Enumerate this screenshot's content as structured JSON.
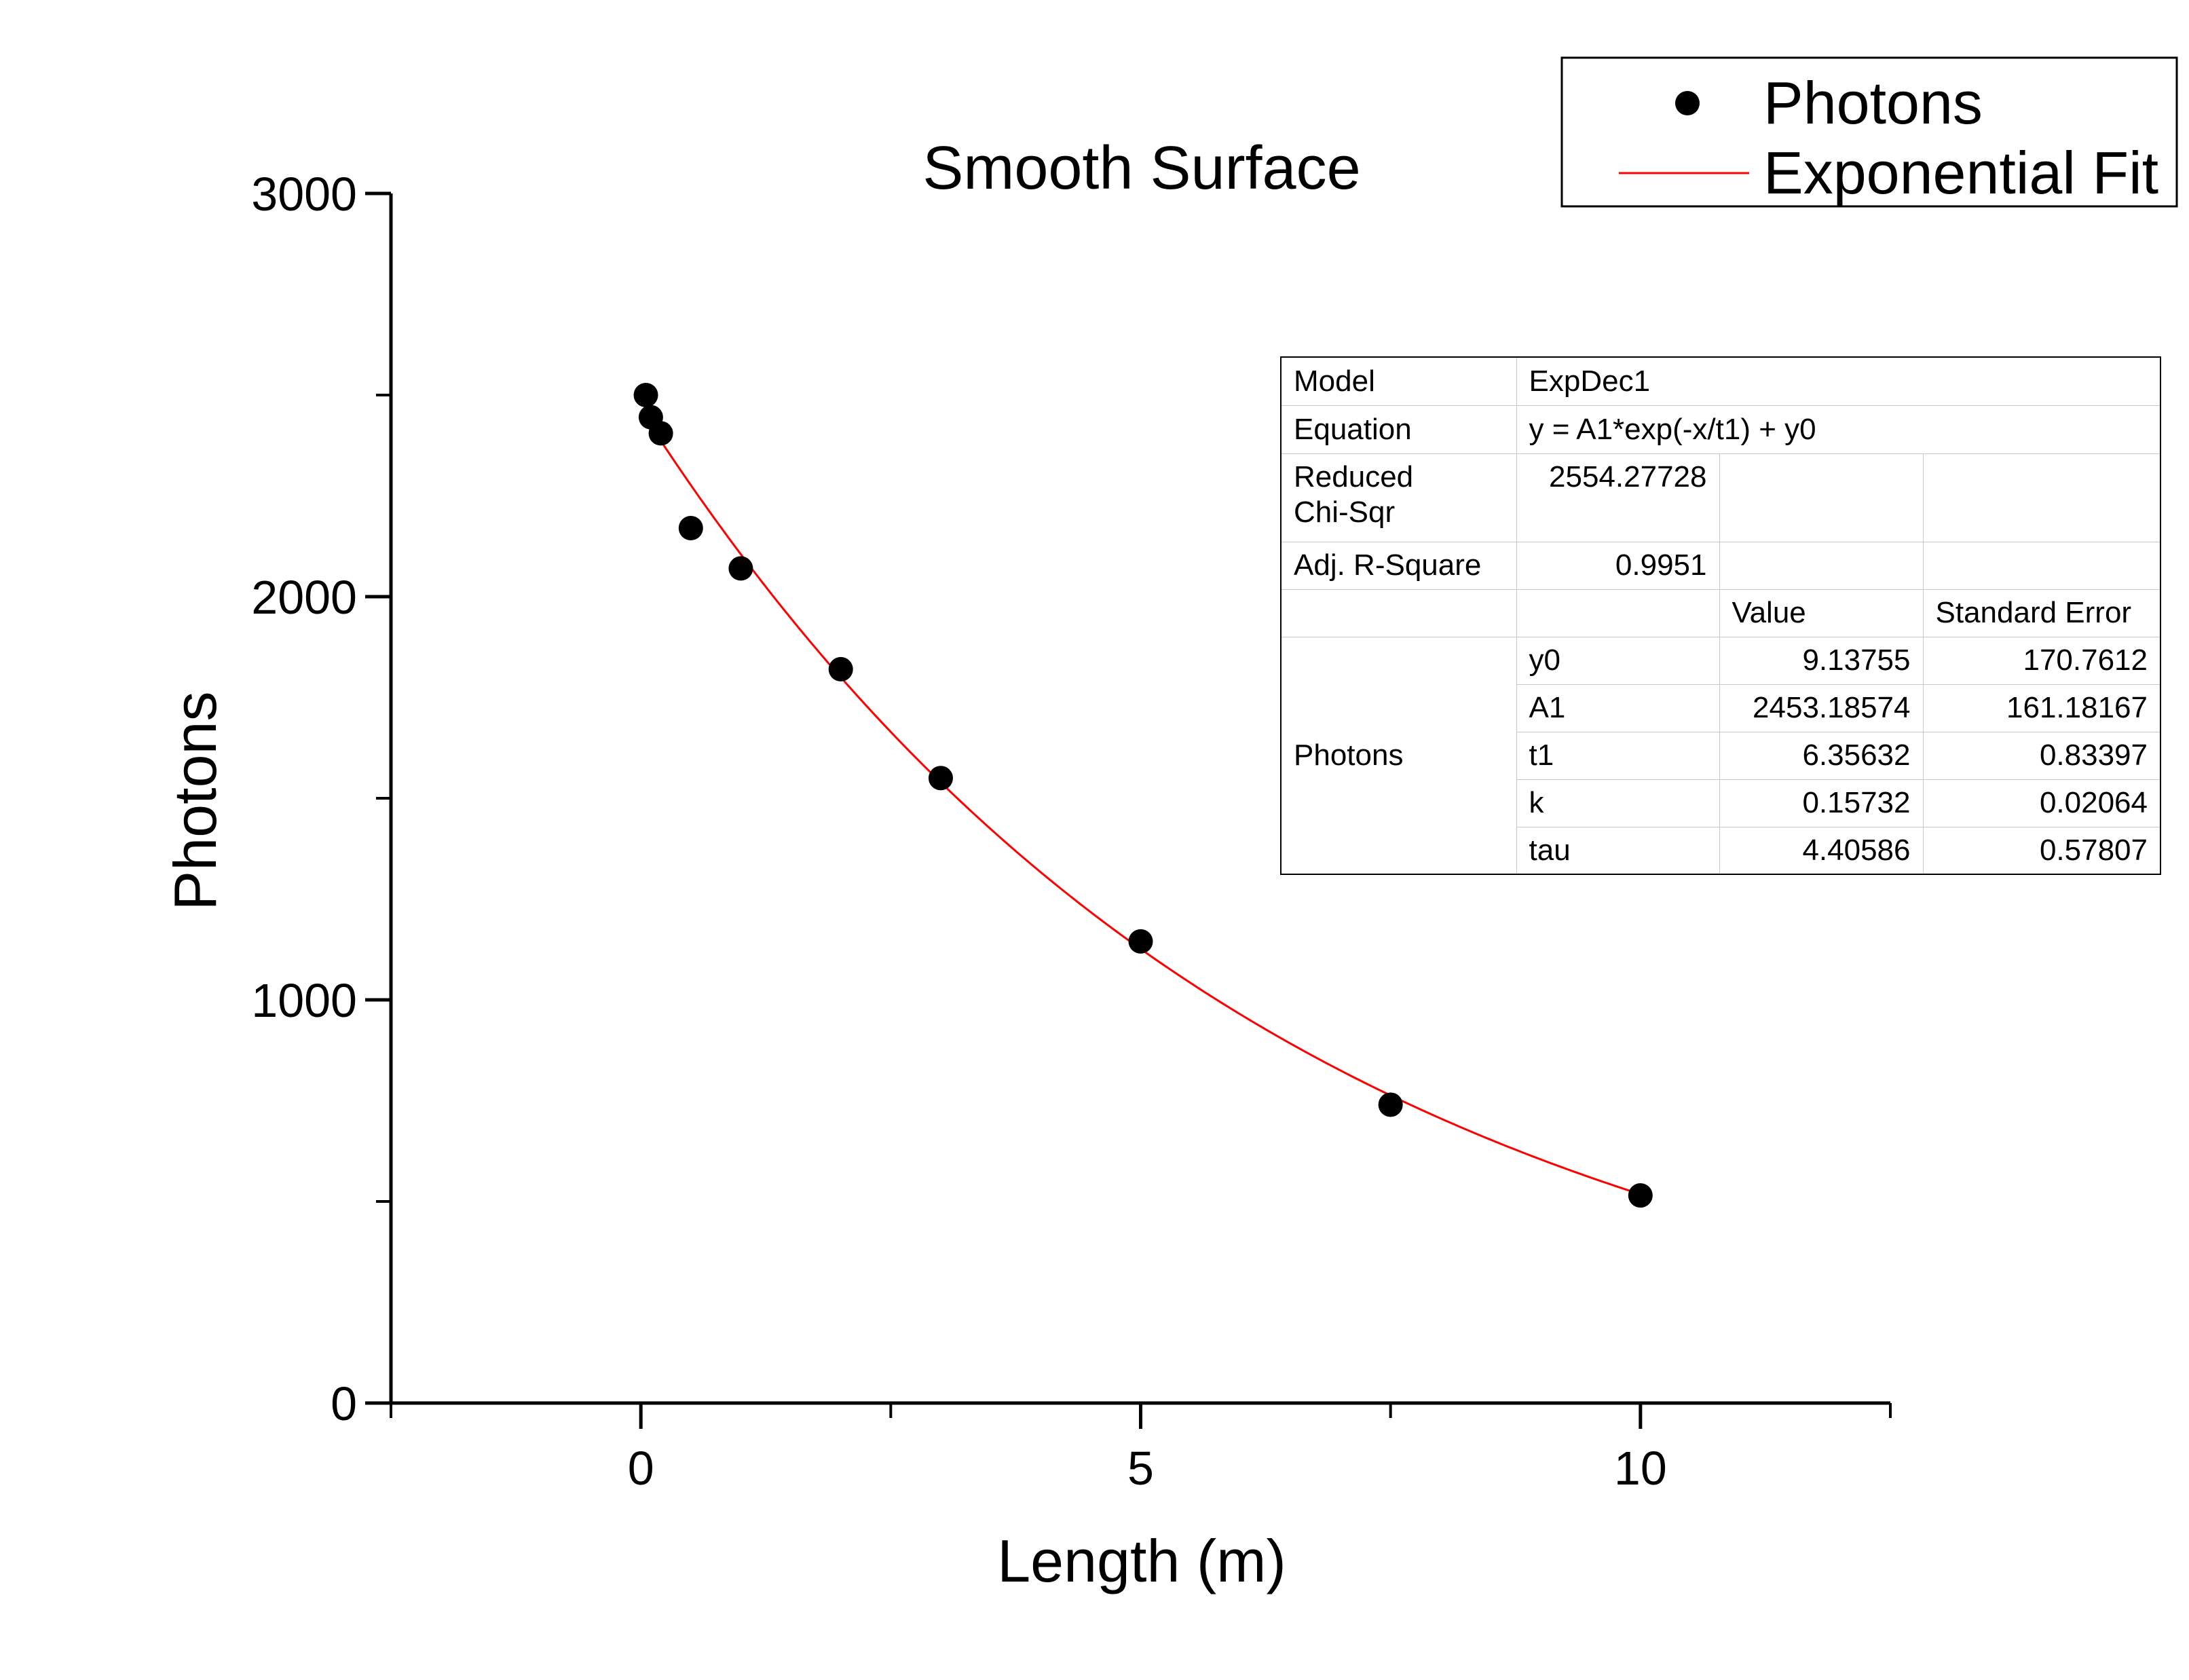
{
  "chart_data": {
    "type": "scatter",
    "title": "Smooth Surface",
    "xlabel": "Length (m)",
    "ylabel": "Photons",
    "xlim": [
      -2.5,
      12.5
    ],
    "ylim": [
      0,
      3000
    ],
    "x_major_ticks": [
      0,
      5,
      10
    ],
    "x_minor_ticks": [
      -2.5,
      2.5,
      7.5,
      12.5
    ],
    "y_major_ticks": [
      0,
      1000,
      2000,
      3000
    ],
    "y_minor_ticks": [
      500,
      1500,
      2500
    ],
    "grid": false,
    "legend_position": "top-right",
    "series": [
      {
        "name": "Photons",
        "kind": "scatter",
        "color": "#000000",
        "x": [
          0.05,
          0.1,
          0.2,
          0.5,
          1,
          2,
          3,
          5,
          7.5,
          10
        ],
        "y": [
          2500,
          2445,
          2405,
          2170,
          2070,
          1820,
          1550,
          1145,
          740,
          515
        ]
      },
      {
        "name": "Exponential Fit",
        "kind": "line",
        "color": "#ff0000",
        "model": "ExpDec1",
        "params": {
          "y0": 9.13755,
          "A1": 2453.18574,
          "t1": 6.35632
        },
        "x_range": [
          0.2,
          10
        ]
      }
    ]
  },
  "fit_table": {
    "model_label": "Model",
    "model_value": "ExpDec1",
    "equation_label": "Equation",
    "equation_value": "y = A1*exp(-x/t1) + y0",
    "chisq_label_1": "Reduced",
    "chisq_label_2": "Chi-Sqr",
    "chisq_value": "2554.27728",
    "r2_label": "Adj. R-Square",
    "r2_value": "0.9951",
    "col_value": "Value",
    "col_error": "Standard Error",
    "series_label": "Photons",
    "rows": [
      {
        "param": "y0",
        "value": "9.13755",
        "error": "170.7612"
      },
      {
        "param": "A1",
        "value": "2453.18574",
        "error": "161.18167"
      },
      {
        "param": "t1",
        "value": "6.35632",
        "error": "0.83397"
      },
      {
        "param": "k",
        "value": "0.15732",
        "error": "0.02064"
      },
      {
        "param": "tau",
        "value": "4.40586",
        "error": "0.57807"
      }
    ]
  }
}
